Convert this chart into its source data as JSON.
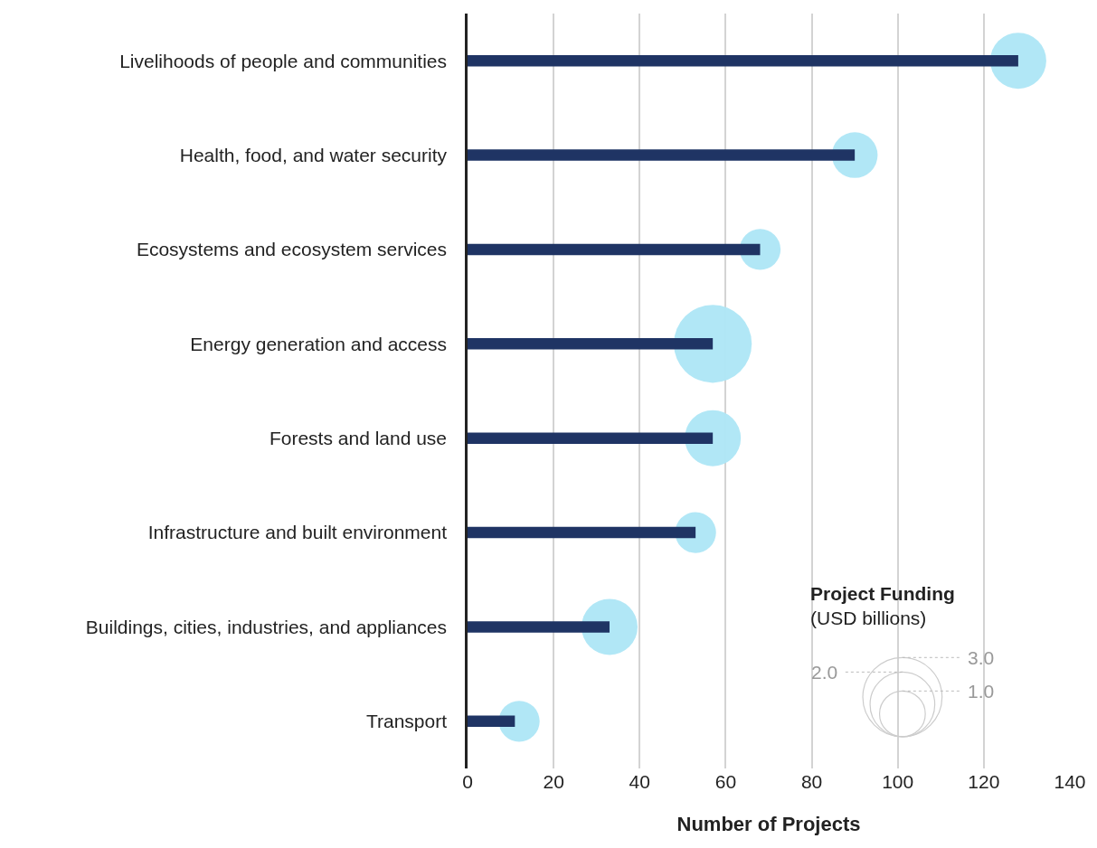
{
  "chart_data": {
    "type": "bar",
    "orientation": "horizontal",
    "xlabel": "Number of Projects",
    "legend_title": "Project Funding\n(USD billions)",
    "categories": [
      "Livelihoods of people and communities",
      "Health, food, and water security",
      "Ecosystems and ecosystem services",
      "Energy generation and access",
      "Forests and land use",
      "Infrastructure and built environment",
      "Buildings, cities, industries, and appliances",
      "Transport"
    ],
    "xlim": [
      0,
      140
    ],
    "xticks": [
      0,
      20,
      40,
      60,
      80,
      100,
      120,
      140
    ],
    "grid": "x",
    "size_legend": [
      {
        "value": 1,
        "label": "1.0"
      },
      {
        "value": 2,
        "label": "2.0"
      },
      {
        "value": 3,
        "label": "3.0"
      }
    ],
    "series": [
      {
        "type": "bar",
        "color": "#1f3464",
        "values": [
          128,
          90,
          68,
          57,
          57,
          53,
          33,
          11
        ]
      },
      {
        "type": "bubble",
        "color": "#aee6f6",
        "values": [
          128,
          90,
          68,
          57,
          57,
          53,
          33,
          12
        ],
        "sizes": [
          1.5,
          1.0,
          0.8,
          2.9,
          1.5,
          0.8,
          1.5,
          0.8
        ]
      }
    ]
  }
}
